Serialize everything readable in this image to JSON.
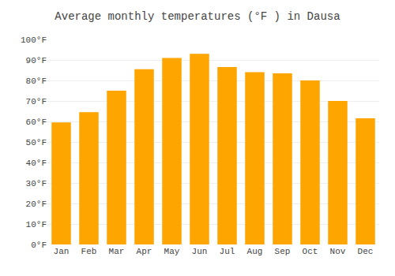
{
  "chart_data": {
    "type": "bar",
    "title": "Average monthly temperatures (°F ) in Dausa",
    "categories": [
      "Jan",
      "Feb",
      "Mar",
      "Apr",
      "May",
      "Jun",
      "Jul",
      "Aug",
      "Sep",
      "Oct",
      "Nov",
      "Dec"
    ],
    "values": [
      59.5,
      64.5,
      75.0,
      85.5,
      91.0,
      93.0,
      86.5,
      84.0,
      83.5,
      80.0,
      70.0,
      61.5
    ],
    "color": "#FFA500",
    "ylim": [
      0,
      100
    ],
    "yticks": [
      {
        "value": 0,
        "label": "0°F"
      },
      {
        "value": 10,
        "label": "10°F"
      },
      {
        "value": 20,
        "label": "20°F"
      },
      {
        "value": 30,
        "label": "30°F"
      },
      {
        "value": 40,
        "label": "40°F"
      },
      {
        "value": 50,
        "label": "50°F"
      },
      {
        "value": 60,
        "label": "60°F"
      },
      {
        "value": 70,
        "label": "70°F"
      },
      {
        "value": 80,
        "label": "80°F"
      },
      {
        "value": 90,
        "label": "90°F"
      },
      {
        "value": 100,
        "label": "100°F"
      }
    ],
    "grid": true
  }
}
